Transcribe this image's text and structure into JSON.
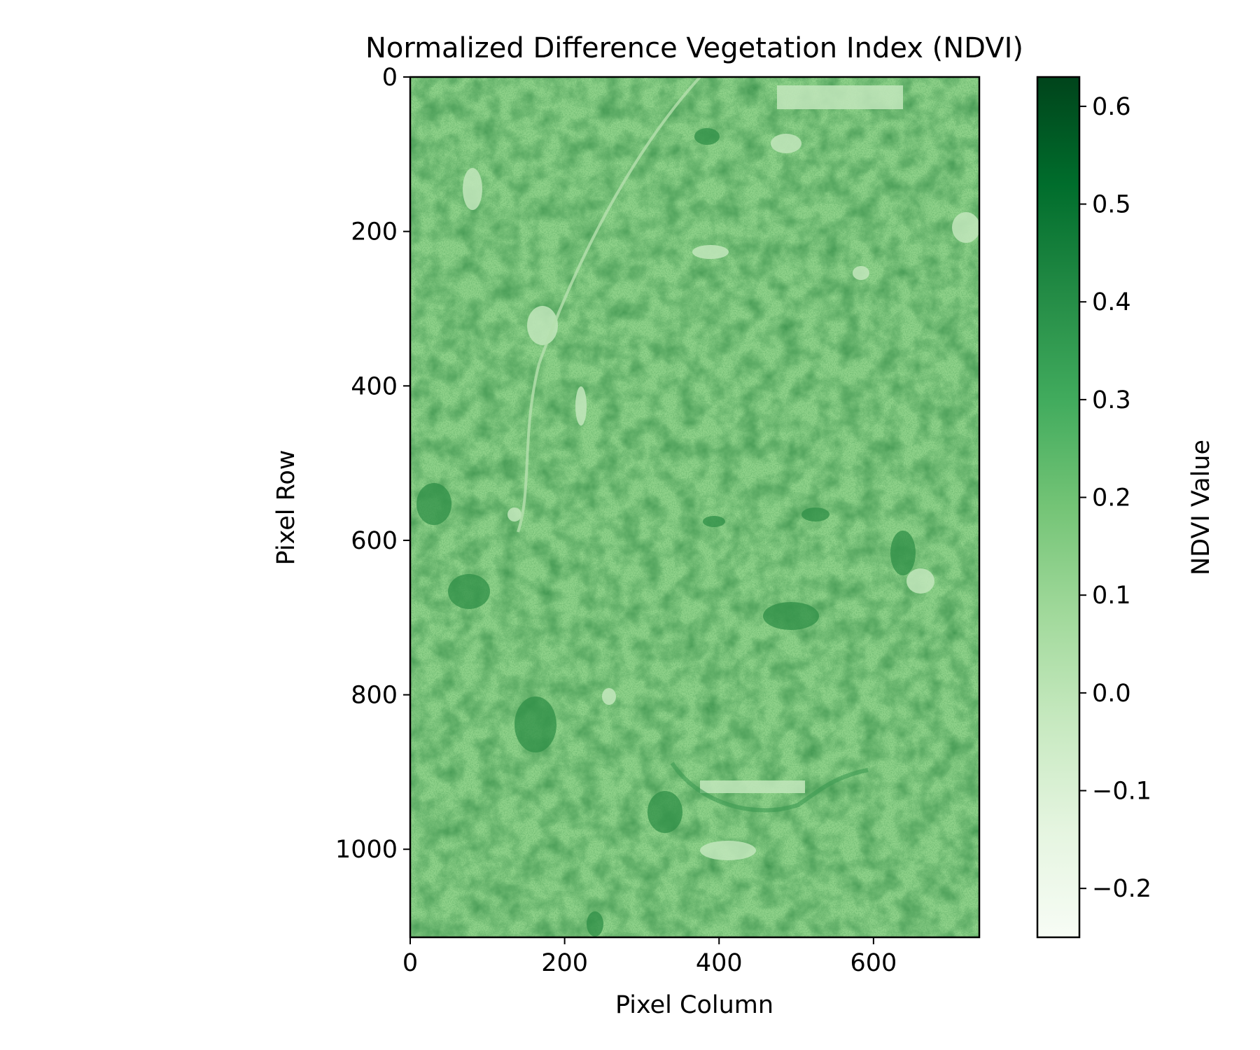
{
  "chart_data": {
    "type": "heatmap",
    "title": "Normalized Difference Vegetation Index (NDVI)",
    "xlabel": "Pixel Column",
    "ylabel": "Pixel Row",
    "xlim": [
      0,
      737
    ],
    "ylim": [
      1114,
      0
    ],
    "xticks": [
      0,
      200,
      400,
      600
    ],
    "xtick_labels": [
      "0",
      "200",
      "400",
      "600"
    ],
    "yticks": [
      0,
      200,
      400,
      600,
      800,
      1000
    ],
    "ytick_labels": [
      "0",
      "200",
      "400",
      "600",
      "800",
      "1000"
    ],
    "colormap": "Greens",
    "colorbar": {
      "label": "NDVI Value",
      "range": [
        -0.25,
        0.63
      ],
      "ticks": [
        0.6,
        0.5,
        0.4,
        0.3,
        0.2,
        0.1,
        0.0,
        -0.1,
        -0.2
      ],
      "tick_labels": [
        "0.6",
        "0.5",
        "0.4",
        "0.3",
        "0.2",
        "0.1",
        "0.0",
        "−0.1",
        "−0.2"
      ],
      "colors": [
        "#f7fcf5",
        "#e5f5e0",
        "#c7e9c0",
        "#a1d99b",
        "#74c476",
        "#41ab5d",
        "#238b45",
        "#006d2c",
        "#00441b"
      ]
    },
    "image_base_color": "#8fd28a",
    "grid": false
  }
}
